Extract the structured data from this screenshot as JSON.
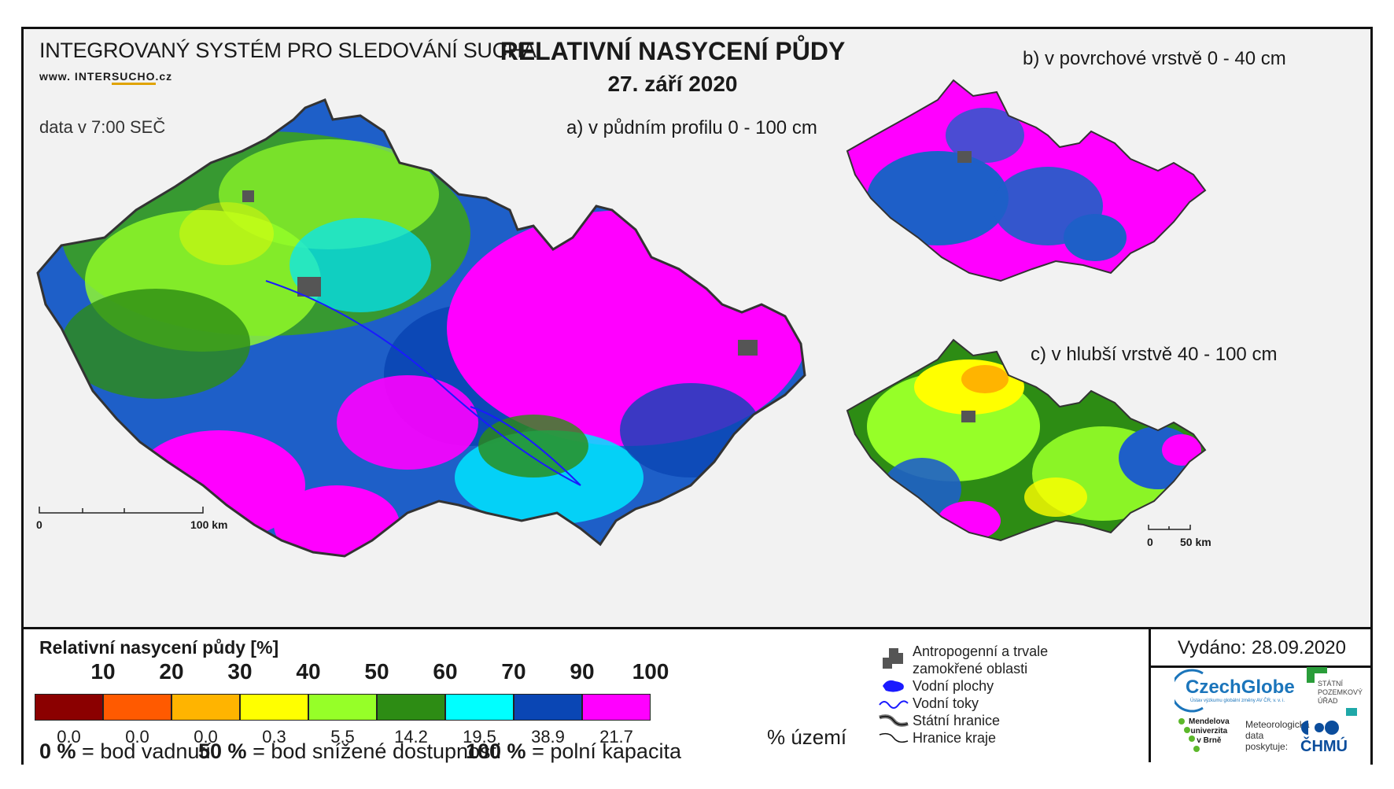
{
  "header": {
    "system_title": "INTEGROVANÝ SYSTÉM PRO SLEDOVÁNÍ SUCHA",
    "url_prefix": "www. INTER",
    "url_highlight": "SUCHO",
    "url_suffix": ".cz",
    "data_time": "data v 7:00 SEČ"
  },
  "title": {
    "main": "RELATIVNÍ NASYCENÍ PŮDY",
    "date": "27. září 2020"
  },
  "panels": {
    "a": "a) v půdním profilu 0 - 100 cm",
    "b": "b) v povrchové vrstvě 0 - 40 cm",
    "c": "c) v hlubší vrstvě 40 - 100 cm"
  },
  "scales": {
    "main": {
      "start": "0",
      "end": "100 km"
    },
    "small": {
      "start": "0",
      "end": "50 km"
    }
  },
  "legend": {
    "title": "Relativní nasycení půdy [%]",
    "ticks": [
      "10",
      "20",
      "30",
      "40",
      "50",
      "60",
      "70",
      "90",
      "100"
    ],
    "classes": [
      {
        "color": "#8b0000",
        "pct": "0.0"
      },
      {
        "color": "#ff5a00",
        "pct": "0.0"
      },
      {
        "color": "#ffb400",
        "pct": "0.0"
      },
      {
        "color": "#ffff00",
        "pct": "0.3"
      },
      {
        "color": "#96ff28",
        "pct": "5.5"
      },
      {
        "color": "#2d8c14",
        "pct": "14.2"
      },
      {
        "color": "#00ffff",
        "pct": "19.5"
      },
      {
        "color": "#0a46b4",
        "pct": "38.9"
      },
      {
        "color": "#ff00ff",
        "pct": "21.7"
      }
    ],
    "pct_unit": "% území",
    "definitions": {
      "d0_value": "0 %",
      "d0_text": "= bod vadnutí",
      "d50_value": "50 %",
      "d50_text": "= bod snížené dostupnosti",
      "d100_value": "100 %",
      "d100_text": "= polní kapacita"
    }
  },
  "symbols": {
    "anthropogenic_line1": "Antropogenní a trvale",
    "anthropogenic_line2": "zamokřené oblasti",
    "water_bodies": "Vodní plochy",
    "streams": "Vodní toky",
    "state_border": "Státní hranice",
    "region_border": "Hranice kraje"
  },
  "issue": {
    "issued": "Vydáno: 28.09.2020",
    "czechglobe": "CzechGlobe",
    "czechglobe_sub": "Ústav výzkumu globální změny AV ČR, v. v. i.",
    "spu_line1": "STÁTNÍ",
    "spu_line2": "POZEMKOVÝ",
    "spu_line3": "ÚŘAD",
    "mendel_line1": "Mendelova",
    "mendel_line2": "univerzita",
    "mendel_line3": "v Brně",
    "meteo_line1": "Meteorologická",
    "meteo_line2": "data",
    "meteo_line3": "poskytuje:",
    "chmu": "ČHMÚ"
  },
  "colors": {
    "frame": "#111111",
    "map_background": "#f2f2f2",
    "magenta": "#ff00ff",
    "blue": "#0a46b4",
    "cyan": "#00ffff",
    "green": "#2d8c14",
    "light_green": "#96ff28",
    "yellow": "#ffff00",
    "czechglobe_blue": "#1b75bb",
    "mendel_green": "#5cb82a",
    "spu_green": "#2a9d3a",
    "chmu_blue": "#0b4d9c"
  }
}
